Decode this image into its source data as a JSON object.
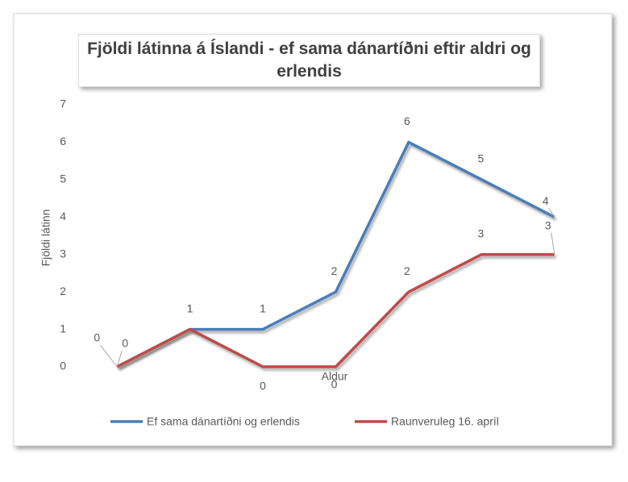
{
  "chart_data": {
    "type": "line",
    "title": "Fjöldi látinna á Íslandi - ef sama dánartíðni  eftir aldri og erlendis",
    "x_label": "Aldur",
    "y_label": "Fjöldi látinn",
    "categories": [
      null,
      null,
      null,
      null,
      null,
      null,
      null
    ],
    "series": [
      {
        "name": "Ef sama dánartíðni og erlendis",
        "color": "#4a7ebb",
        "values": [
          0,
          1,
          1,
          2,
          6,
          5,
          4
        ]
      },
      {
        "name": "Raunveruleg 16. apríl",
        "color": "#be4b48",
        "values": [
          0,
          1,
          0,
          0,
          2,
          3,
          3
        ]
      }
    ],
    "ylim": [
      0,
      7
    ],
    "yticks": [
      0,
      1,
      2,
      3,
      4,
      5,
      6,
      7
    ],
    "grid": true,
    "legend": "bottom"
  }
}
